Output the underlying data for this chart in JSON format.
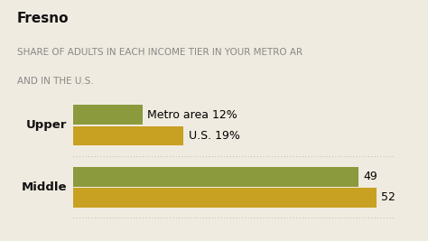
{
  "title": "Fresno",
  "subtitle_line1": "SHARE OF ADULTS IN EACH INCOME TIER IN YOUR METRO AR",
  "subtitle_line2": "AND IN THE U.S.",
  "background_color": "#f0ebe0",
  "categories": [
    "Upper",
    "Middle"
  ],
  "metro_values": [
    12,
    49
  ],
  "us_values": [
    19,
    52
  ],
  "metro_color": "#8b9a3c",
  "us_color": "#c8a022",
  "bar_height": 0.32,
  "xlim": [
    0,
    55
  ],
  "title_fontsize": 11,
  "subtitle_fontsize": 7.5,
  "label_fontsize": 9.5,
  "value_fontsize": 9,
  "annotation_metro": "Metro area 12%",
  "annotation_us": "U.S. 19%",
  "title_color": "#111111",
  "subtitle_color": "#888888",
  "label_color": "#111111"
}
